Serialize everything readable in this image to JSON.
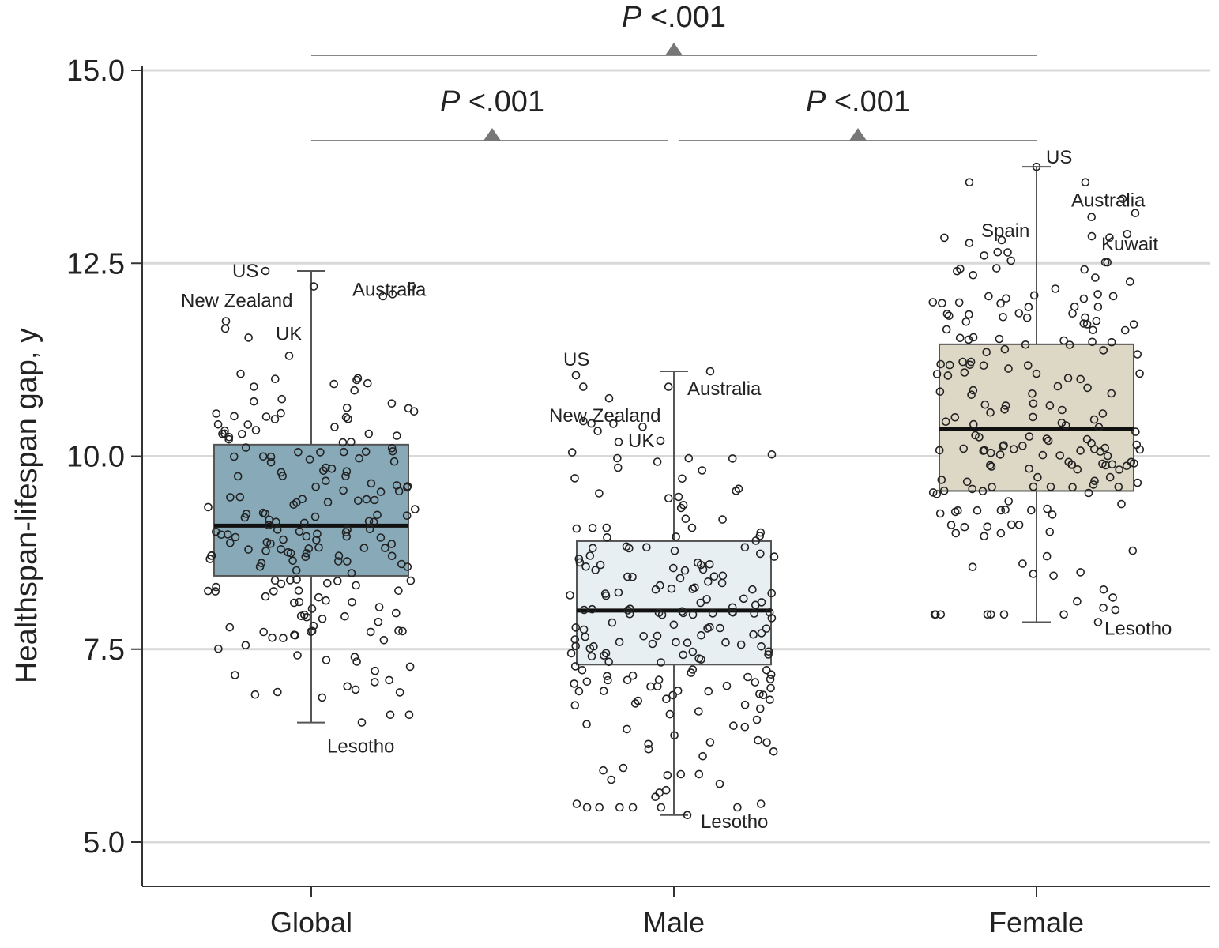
{
  "chart_data": {
    "type": "box",
    "ylabel": "Healthspan-lifespan gap, y",
    "xlabel": "",
    "ylim": [
      4.6,
      15.3
    ],
    "yticks": [
      "5.0",
      "7.5",
      "10.0",
      "12.5",
      "15.0"
    ],
    "ytick_values": [
      5.0,
      7.5,
      10.0,
      12.5,
      15.0
    ],
    "grid": true,
    "categories": [
      "Global",
      "Male",
      "Female"
    ],
    "colors": {
      "Global": "#87a9b8",
      "Male": "#e8eff2",
      "Female": "#ddd7c6"
    },
    "boxes": [
      {
        "name": "Global",
        "q1": 8.45,
        "median": 9.1,
        "q3": 10.15,
        "whisker_low": 6.55,
        "whisker_high": 12.4
      },
      {
        "name": "Male",
        "q1": 7.3,
        "median": 8.0,
        "q3": 8.9,
        "whisker_low": 5.35,
        "whisker_high": 11.1
      },
      {
        "name": "Female",
        "q1": 9.55,
        "median": 10.35,
        "q3": 11.45,
        "whisker_low": 7.85,
        "whisker_high": 13.75
      }
    ],
    "labeled_points": [
      {
        "group": "Global",
        "label": "US",
        "value": 12.4
      },
      {
        "group": "Global",
        "label": "New Zealand",
        "value": 11.75
      },
      {
        "group": "Global",
        "label": "UK",
        "value": 11.3
      },
      {
        "group": "Global",
        "label": "Australia",
        "value": 12.1
      },
      {
        "group": "Global",
        "label": "Lesotho",
        "value": 6.55
      },
      {
        "group": "Male",
        "label": "US",
        "value": 11.05
      },
      {
        "group": "Male",
        "label": "New Zealand",
        "value": 10.75
      },
      {
        "group": "Male",
        "label": "UK",
        "value": 10.2
      },
      {
        "group": "Male",
        "label": "Australia",
        "value": 11.1
      },
      {
        "group": "Male",
        "label": "Lesotho",
        "value": 5.35
      },
      {
        "group": "Female",
        "label": "US",
        "value": 13.75
      },
      {
        "group": "Female",
        "label": "Spain",
        "value": 12.8
      },
      {
        "group": "Female",
        "label": "Australia",
        "value": 13.15
      },
      {
        "group": "Female",
        "label": "Kuwait",
        "value": 12.85
      },
      {
        "group": "Female",
        "label": "Lesotho",
        "value": 7.85
      }
    ],
    "comparisons": [
      {
        "from": "Global",
        "to": "Female",
        "label_italic": "P",
        "label": "<.001"
      },
      {
        "from": "Global",
        "to": "Male",
        "label_italic": "P",
        "label": "<.001"
      },
      {
        "from": "Male",
        "to": "Female",
        "label_italic": "P",
        "label": "<.001"
      }
    ],
    "points_per_group": 200
  }
}
